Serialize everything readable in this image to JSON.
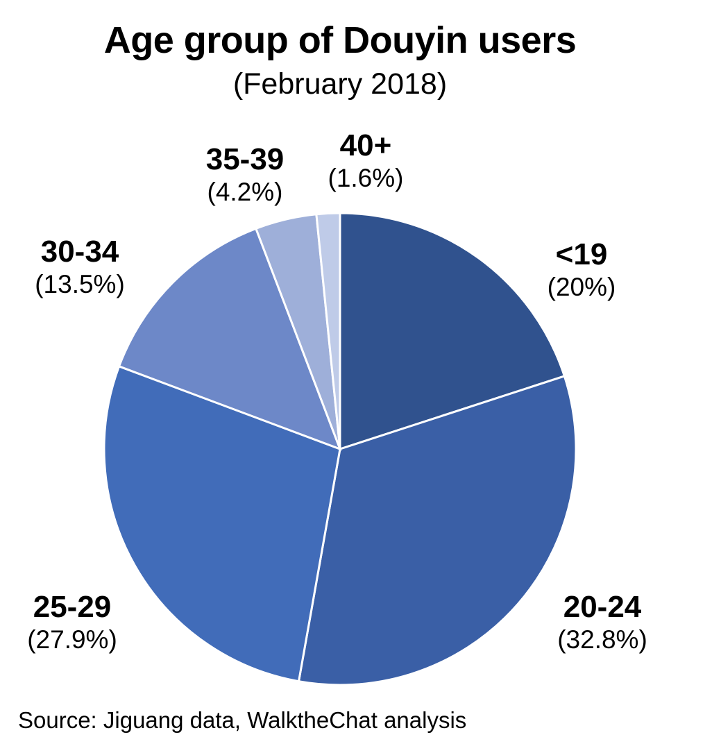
{
  "chart_data": {
    "type": "pie",
    "title": "Age group of Douyin users",
    "subtitle": "(February 2018)",
    "slices": [
      {
        "label": "<19",
        "value": 20.0,
        "value_label": "(20%)",
        "color": "#30528e"
      },
      {
        "label": "20-24",
        "value": 32.8,
        "value_label": "(32.8%)",
        "color": "#3a5fa6"
      },
      {
        "label": "25-29",
        "value": 27.9,
        "value_label": "(27.9%)",
        "color": "#416cb9"
      },
      {
        "label": "30-34",
        "value": 13.5,
        "value_label": "(13.5%)",
        "color": "#6d88c8"
      },
      {
        "label": "35-39",
        "value": 4.2,
        "value_label": "(4.2%)",
        "color": "#9eafd9"
      },
      {
        "label": "40+",
        "value": 1.6,
        "value_label": "(1.6%)",
        "color": "#bfcbe8"
      }
    ],
    "start_angle": "12 o'clock",
    "direction": "clockwise",
    "source": "Source: Jiguang data, WalktheChat analysis"
  }
}
